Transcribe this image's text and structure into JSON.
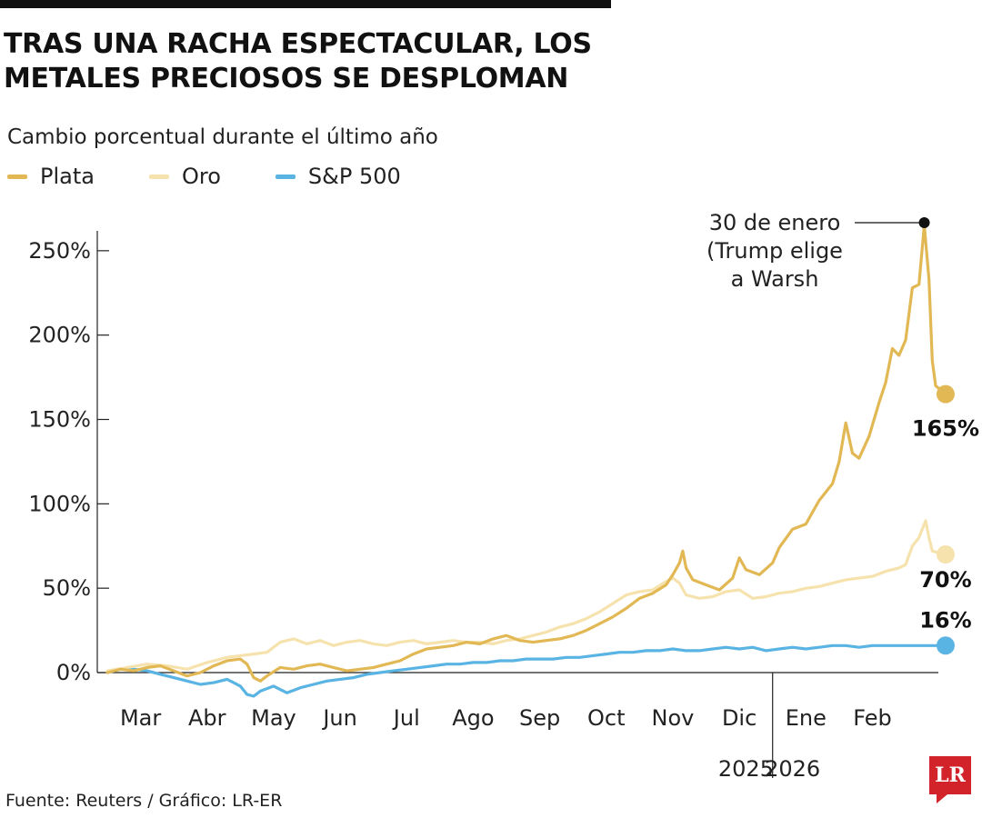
{
  "header": {
    "title": "TRAS UNA RACHA ESPECTACULAR, LOS METALES PRECIOSOS SE DESPLOMAN",
    "subtitle": "Cambio porcentual durante el último año"
  },
  "footer": {
    "source": "Fuente: Reuters / Gráfico: LR-ER",
    "logo_text": "LR"
  },
  "colors": {
    "plata": "#e2b854",
    "oro": "#f6e2ad",
    "sp500": "#5ab4e3",
    "axis": "#222222"
  },
  "chart_data": {
    "type": "line",
    "title": "TRAS UNA RACHA ESPECTACULAR, LOS METALES PRECIOSOS SE DESPLOMAN",
    "ylabel": "Cambio porcentual durante el último año",
    "ylim": [
      0,
      265
    ],
    "yticks": [
      0,
      50,
      100,
      150,
      200,
      250
    ],
    "ytick_labels": [
      "0%",
      "50%",
      "100%",
      "150%",
      "200%",
      "250%"
    ],
    "xlim": [
      0,
      12.3
    ],
    "months": [
      "Mar",
      "Abr",
      "May",
      "Jun",
      "Jul",
      "Ago",
      "Sep",
      "Oct",
      "Nov",
      "Dic",
      "Ene",
      "Feb"
    ],
    "years": [
      {
        "label": "2025",
        "at": 9.6
      },
      {
        "label": "2026",
        "at": 10.3
      }
    ],
    "year_divider_at": 10.0,
    "grid": false,
    "legend": "top-left",
    "series": [
      {
        "name": "Plata",
        "color_key": "plata",
        "end_label": "165%",
        "points": [
          [
            0,
            0
          ],
          [
            0.2,
            2
          ],
          [
            0.4,
            1
          ],
          [
            0.6,
            3
          ],
          [
            0.8,
            4
          ],
          [
            1.0,
            1
          ],
          [
            1.2,
            -2
          ],
          [
            1.4,
            0
          ],
          [
            1.6,
            4
          ],
          [
            1.8,
            7
          ],
          [
            2.0,
            8
          ],
          [
            2.1,
            5
          ],
          [
            2.2,
            -3
          ],
          [
            2.3,
            -5
          ],
          [
            2.4,
            -2
          ],
          [
            2.6,
            3
          ],
          [
            2.8,
            2
          ],
          [
            3.0,
            4
          ],
          [
            3.2,
            5
          ],
          [
            3.4,
            3
          ],
          [
            3.6,
            1
          ],
          [
            3.8,
            2
          ],
          [
            4.0,
            3
          ],
          [
            4.2,
            5
          ],
          [
            4.4,
            7
          ],
          [
            4.6,
            11
          ],
          [
            4.8,
            14
          ],
          [
            5.0,
            15
          ],
          [
            5.2,
            16
          ],
          [
            5.4,
            18
          ],
          [
            5.6,
            17
          ],
          [
            5.8,
            20
          ],
          [
            6.0,
            22
          ],
          [
            6.2,
            19
          ],
          [
            6.4,
            18
          ],
          [
            6.6,
            19
          ],
          [
            6.8,
            20
          ],
          [
            7.0,
            22
          ],
          [
            7.2,
            25
          ],
          [
            7.4,
            29
          ],
          [
            7.6,
            33
          ],
          [
            7.8,
            38
          ],
          [
            8.0,
            44
          ],
          [
            8.2,
            47
          ],
          [
            8.4,
            52
          ],
          [
            8.5,
            58
          ],
          [
            8.6,
            65
          ],
          [
            8.65,
            72
          ],
          [
            8.7,
            62
          ],
          [
            8.8,
            55
          ],
          [
            9.0,
            52
          ],
          [
            9.2,
            49
          ],
          [
            9.4,
            56
          ],
          [
            9.5,
            68
          ],
          [
            9.6,
            61
          ],
          [
            9.8,
            58
          ],
          [
            10.0,
            65
          ],
          [
            10.1,
            74
          ],
          [
            10.3,
            85
          ],
          [
            10.5,
            88
          ],
          [
            10.7,
            102
          ],
          [
            10.9,
            112
          ],
          [
            11.0,
            125
          ],
          [
            11.1,
            148
          ],
          [
            11.2,
            130
          ],
          [
            11.3,
            127
          ],
          [
            11.45,
            140
          ],
          [
            11.6,
            160
          ],
          [
            11.7,
            172
          ],
          [
            11.8,
            192
          ],
          [
            11.9,
            188
          ],
          [
            12.0,
            197
          ],
          [
            12.1,
            228
          ],
          [
            12.2,
            230
          ],
          [
            12.28,
            265
          ],
          [
            12.35,
            233
          ],
          [
            12.4,
            185
          ],
          [
            12.45,
            170
          ],
          [
            12.6,
            165
          ]
        ]
      },
      {
        "name": "Oro",
        "color_key": "oro",
        "end_label": "70%",
        "points": [
          [
            0,
            1
          ],
          [
            0.3,
            3
          ],
          [
            0.6,
            5
          ],
          [
            0.9,
            4
          ],
          [
            1.2,
            2
          ],
          [
            1.5,
            6
          ],
          [
            1.8,
            9
          ],
          [
            2.0,
            10
          ],
          [
            2.2,
            11
          ],
          [
            2.4,
            12
          ],
          [
            2.6,
            18
          ],
          [
            2.8,
            20
          ],
          [
            3.0,
            17
          ],
          [
            3.2,
            19
          ],
          [
            3.4,
            16
          ],
          [
            3.6,
            18
          ],
          [
            3.8,
            19
          ],
          [
            4.0,
            17
          ],
          [
            4.2,
            16
          ],
          [
            4.4,
            18
          ],
          [
            4.6,
            19
          ],
          [
            4.8,
            17
          ],
          [
            5.0,
            18
          ],
          [
            5.2,
            19
          ],
          [
            5.4,
            18
          ],
          [
            5.6,
            18
          ],
          [
            5.8,
            17
          ],
          [
            6.0,
            19
          ],
          [
            6.2,
            20
          ],
          [
            6.4,
            22
          ],
          [
            6.6,
            24
          ],
          [
            6.8,
            27
          ],
          [
            7.0,
            29
          ],
          [
            7.2,
            32
          ],
          [
            7.4,
            36
          ],
          [
            7.6,
            41
          ],
          [
            7.8,
            46
          ],
          [
            8.0,
            48
          ],
          [
            8.2,
            49
          ],
          [
            8.4,
            54
          ],
          [
            8.5,
            56
          ],
          [
            8.6,
            53
          ],
          [
            8.7,
            46
          ],
          [
            8.9,
            44
          ],
          [
            9.1,
            45
          ],
          [
            9.3,
            48
          ],
          [
            9.5,
            49
          ],
          [
            9.7,
            44
          ],
          [
            9.9,
            45
          ],
          [
            10.1,
            47
          ],
          [
            10.3,
            48
          ],
          [
            10.5,
            50
          ],
          [
            10.7,
            51
          ],
          [
            10.9,
            53
          ],
          [
            11.1,
            55
          ],
          [
            11.3,
            56
          ],
          [
            11.5,
            57
          ],
          [
            11.7,
            60
          ],
          [
            11.9,
            62
          ],
          [
            12.0,
            64
          ],
          [
            12.1,
            75
          ],
          [
            12.2,
            80
          ],
          [
            12.3,
            90
          ],
          [
            12.35,
            80
          ],
          [
            12.4,
            72
          ],
          [
            12.6,
            70
          ]
        ]
      },
      {
        "name": "S&P 500",
        "color_key": "sp500",
        "end_label": "16%",
        "points": [
          [
            0,
            0
          ],
          [
            0.2,
            2
          ],
          [
            0.4,
            2
          ],
          [
            0.6,
            1
          ],
          [
            0.8,
            -1
          ],
          [
            1.0,
            -3
          ],
          [
            1.2,
            -5
          ],
          [
            1.4,
            -7
          ],
          [
            1.6,
            -6
          ],
          [
            1.8,
            -4
          ],
          [
            2.0,
            -8
          ],
          [
            2.1,
            -13
          ],
          [
            2.2,
            -14
          ],
          [
            2.3,
            -11
          ],
          [
            2.5,
            -8
          ],
          [
            2.7,
            -12
          ],
          [
            2.9,
            -9
          ],
          [
            3.1,
            -7
          ],
          [
            3.3,
            -5
          ],
          [
            3.5,
            -4
          ],
          [
            3.7,
            -3
          ],
          [
            3.9,
            -1
          ],
          [
            4.1,
            0
          ],
          [
            4.3,
            1
          ],
          [
            4.5,
            2
          ],
          [
            4.7,
            3
          ],
          [
            4.9,
            4
          ],
          [
            5.1,
            5
          ],
          [
            5.3,
            5
          ],
          [
            5.5,
            6
          ],
          [
            5.7,
            6
          ],
          [
            5.9,
            7
          ],
          [
            6.1,
            7
          ],
          [
            6.3,
            8
          ],
          [
            6.5,
            8
          ],
          [
            6.7,
            8
          ],
          [
            6.9,
            9
          ],
          [
            7.1,
            9
          ],
          [
            7.3,
            10
          ],
          [
            7.5,
            11
          ],
          [
            7.7,
            12
          ],
          [
            7.9,
            12
          ],
          [
            8.1,
            13
          ],
          [
            8.3,
            13
          ],
          [
            8.5,
            14
          ],
          [
            8.7,
            13
          ],
          [
            8.9,
            13
          ],
          [
            9.1,
            14
          ],
          [
            9.3,
            15
          ],
          [
            9.5,
            14
          ],
          [
            9.7,
            15
          ],
          [
            9.9,
            13
          ],
          [
            10.1,
            14
          ],
          [
            10.3,
            15
          ],
          [
            10.5,
            14
          ],
          [
            10.7,
            15
          ],
          [
            10.9,
            16
          ],
          [
            11.1,
            16
          ],
          [
            11.3,
            15
          ],
          [
            11.5,
            16
          ],
          [
            11.7,
            16
          ],
          [
            11.9,
            16
          ],
          [
            12.1,
            16
          ],
          [
            12.3,
            16
          ],
          [
            12.4,
            16
          ],
          [
            12.6,
            16
          ]
        ]
      }
    ],
    "annotations": [
      {
        "lines": [
          "30 de enero",
          "(Trump elige",
          "a Warsh"
        ],
        "x": 12.28,
        "y": 265
      }
    ]
  }
}
